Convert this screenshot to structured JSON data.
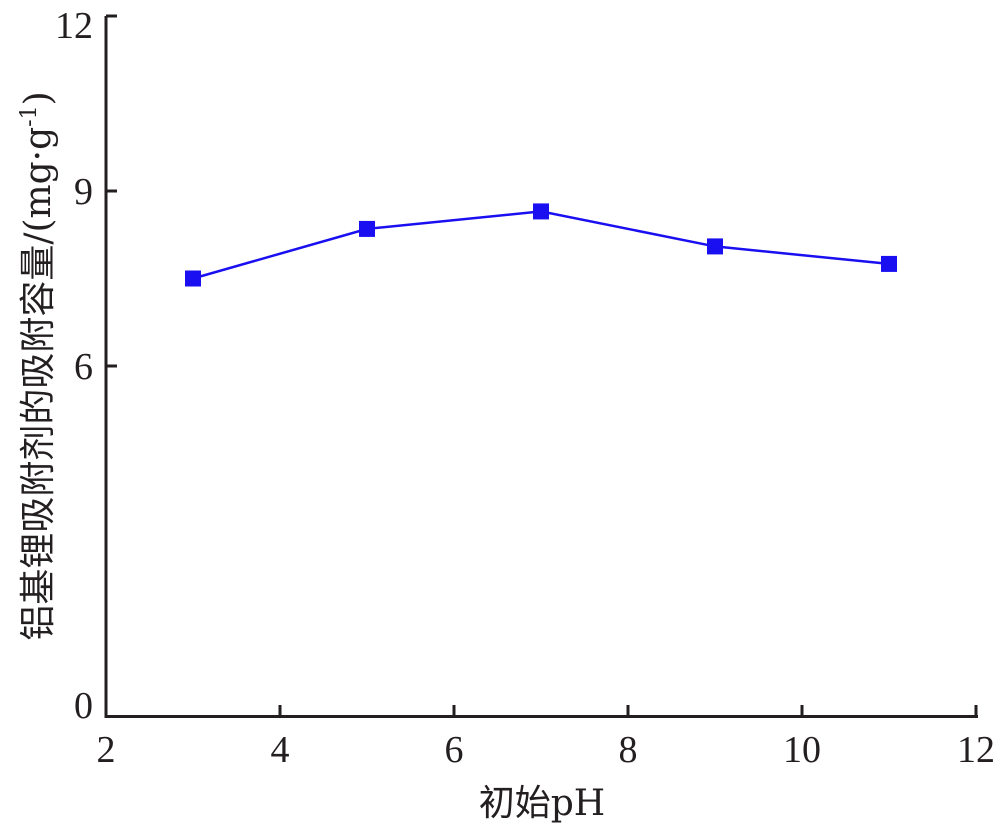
{
  "chart_data": {
    "type": "line",
    "title": "",
    "xlabel": "初始pH",
    "ylabel_main": "铝基锂吸附剂的吸附容量/(mg·g",
    "ylabel_sup": "-1",
    "ylabel_close": ")",
    "xlim": [
      2,
      12
    ],
    "ylim": [
      0,
      12
    ],
    "xticks": [
      2,
      4,
      6,
      8,
      10,
      12
    ],
    "yticks": [
      0,
      6,
      9,
      12
    ],
    "grid": false,
    "legend": "none",
    "series": [
      {
        "color": "#1a0ff0",
        "marker": "square",
        "x": [
          3,
          5,
          7,
          9,
          11
        ],
        "y": [
          7.5,
          8.35,
          8.65,
          8.05,
          7.75
        ]
      }
    ]
  }
}
